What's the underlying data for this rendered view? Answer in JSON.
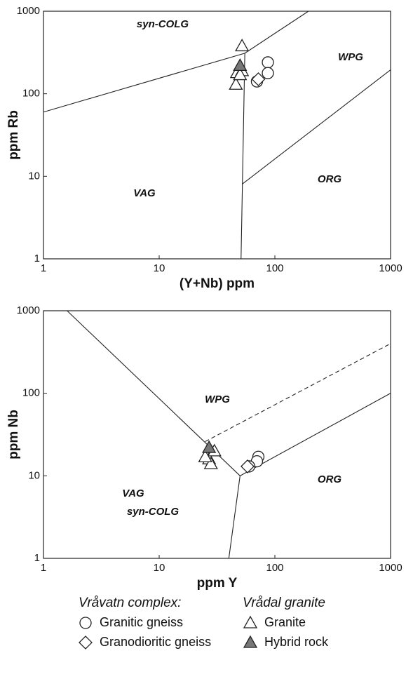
{
  "chart_data": [
    {
      "type": "scatter",
      "xlabel": "(Y+Nb) ppm",
      "ylabel": "ppm Rb",
      "log": true,
      "xlim": [
        1,
        1000
      ],
      "ylim": [
        1,
        1000
      ],
      "xticks": [
        1,
        10,
        100,
        1000
      ],
      "yticks": [
        1,
        10,
        100,
        1000
      ],
      "annotations": [
        "syn-COLG",
        "WPG",
        "VAG",
        "ORG"
      ],
      "boundaries": [
        {
          "x": [
            1,
            55,
            195
          ],
          "y": [
            60,
            310,
            1000
          ],
          "dash": false
        },
        {
          "x": [
            55,
            51
          ],
          "y": [
            310,
            1
          ],
          "dash": false
        },
        {
          "x": [
            52,
            1000
          ],
          "y": [
            8,
            195
          ],
          "dash": false
        }
      ],
      "series": [
        {
          "name": "Granitic gneiss",
          "marker": "circle",
          "color": "#ffffff",
          "x": [
            87,
            87,
            70
          ],
          "y": [
            240,
            178,
            141
          ]
        },
        {
          "name": "Granodioritic gneiss",
          "marker": "diamond",
          "color": "#ffffff",
          "x": [
            72
          ],
          "y": [
            150
          ]
        },
        {
          "name": "Granite",
          "marker": "triangle",
          "color": "#ffffff",
          "x": [
            52,
            47,
            52,
            46,
            50
          ],
          "y": [
            380,
            180,
            190,
            130,
            170
          ]
        },
        {
          "name": "Hybrid rock",
          "marker": "triangle",
          "color": "#777777",
          "x": [
            50
          ],
          "y": [
            220
          ]
        }
      ]
    },
    {
      "type": "scatter",
      "xlabel": "ppm Y",
      "ylabel": "ppm Nb",
      "log": true,
      "xlim": [
        1,
        1000
      ],
      "ylim": [
        1,
        1000
      ],
      "xticks": [
        1,
        10,
        100,
        1000
      ],
      "yticks": [
        1,
        10,
        100,
        1000
      ],
      "annotations": [
        "WPG",
        "VAG",
        "syn-COLG",
        "ORG"
      ],
      "boundaries": [
        {
          "x": [
            1.6,
            50
          ],
          "y": [
            1000,
            10
          ],
          "dash": false
        },
        {
          "x": [
            50,
            1000
          ],
          "y": [
            10,
            100
          ],
          "dash": false
        },
        {
          "x": [
            50,
            40
          ],
          "y": [
            10,
            1
          ],
          "dash": false
        },
        {
          "x": [
            25,
            1000
          ],
          "y": [
            26,
            400
          ],
          "dash": true
        }
      ],
      "series": [
        {
          "marker": "circle",
          "color": "#ffffff",
          "x": [
            72,
            70,
            60
          ],
          "y": [
            17,
            15,
            13
          ]
        },
        {
          "marker": "diamond",
          "color": "#ffffff",
          "x": [
            58
          ],
          "y": [
            13
          ]
        },
        {
          "marker": "triangle",
          "color": "#ffffff",
          "x": [
            28,
            27,
            28,
            30,
            25
          ],
          "y": [
            20,
            16,
            14,
            20,
            17
          ]
        },
        {
          "marker": "triangle",
          "color": "#777777",
          "x": [
            27
          ],
          "y": [
            22
          ]
        }
      ]
    }
  ],
  "legend_titles": [
    "Vråvatn complex:",
    "Vrådal granite"
  ]
}
